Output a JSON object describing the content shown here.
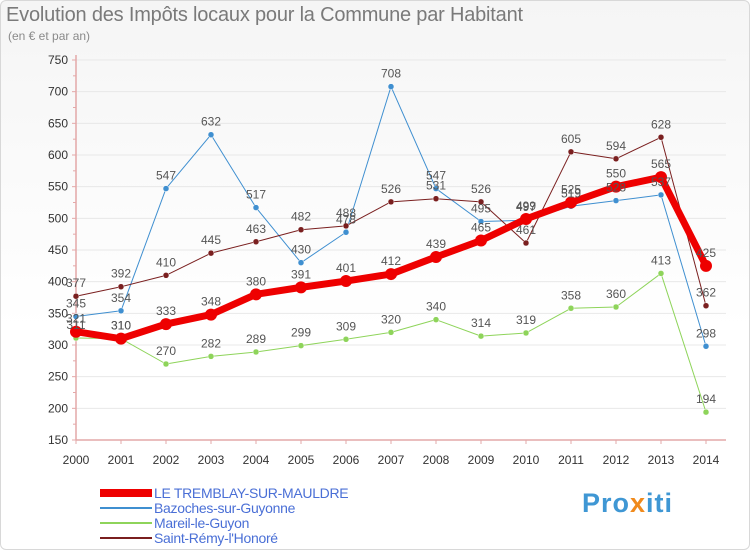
{
  "header": {
    "title": "Evolution des Impôts locaux pour la Commune par Habitant",
    "subtitle": "(en € et par an)"
  },
  "logo": {
    "main": "Pro",
    "accent": "x",
    "rest": "iti"
  },
  "colors": {
    "axis": "#e3a8a8",
    "grid": "#e8e8e8",
    "tick_text": "#333333",
    "label_text": "#555555"
  },
  "chart_data": {
    "type": "line",
    "title": "Evolution des Impôts locaux pour la Commune par Habitant",
    "subtitle": "(en € et par an)",
    "x": [
      "2000",
      "2001",
      "2002",
      "2003",
      "2004",
      "2005",
      "2006",
      "2007",
      "2008",
      "2009",
      "2010",
      "2011",
      "2012",
      "2013",
      "2014"
    ],
    "ylim": [
      150,
      750
    ],
    "yticks": [
      150,
      200,
      250,
      300,
      350,
      400,
      450,
      500,
      550,
      600,
      650,
      700,
      750
    ],
    "grid": true,
    "legend_position": "bottom-left",
    "series": [
      {
        "name": "LE TREMBLAY-SUR-MAULDRE",
        "color": "#ee0000",
        "width": 7,
        "values": [
          321,
          310,
          333,
          348,
          380,
          391,
          401,
          412,
          439,
          465,
          499,
          525,
          550,
          565,
          425
        ],
        "labels": [
          "321",
          "310",
          "333",
          "348",
          "380",
          "391",
          "401",
          "412",
          "439",
          "465",
          "499",
          "525",
          "550",
          "565",
          "425"
        ]
      },
      {
        "name": "Bazoches-sur-Guyonne",
        "color": "#3f8fd0",
        "width": 1,
        "values": [
          345,
          354,
          547,
          632,
          517,
          430,
          478,
          708,
          547,
          495,
          497,
          519,
          528,
          537,
          298
        ],
        "labels": [
          "345",
          "354",
          "547",
          "632",
          "517",
          "430",
          "478",
          "708",
          "547",
          "495",
          "497",
          "519",
          "528",
          "537",
          "298"
        ]
      },
      {
        "name": "Mareil-le-Guyon",
        "color": "#8ed45a",
        "width": 1,
        "values": [
          311,
          310,
          270,
          282,
          289,
          299,
          309,
          320,
          340,
          314,
          319,
          358,
          360,
          413,
          194
        ],
        "labels": [
          "311",
          "310",
          "270",
          "282",
          "289",
          "299",
          "309",
          "320",
          "340",
          "314",
          "319",
          "358",
          "360",
          "413",
          "194"
        ]
      },
      {
        "name": "Saint-Rémy-l'Honoré",
        "color": "#7a1f1f",
        "width": 1,
        "values": [
          377,
          392,
          410,
          445,
          463,
          482,
          488,
          526,
          531,
          526,
          461,
          605,
          594,
          628,
          362
        ],
        "labels": [
          "377",
          "392",
          "410",
          "445",
          "463",
          "482",
          "488",
          "526",
          "531",
          "526",
          "461",
          "605",
          "594",
          "628",
          "362"
        ]
      }
    ]
  }
}
